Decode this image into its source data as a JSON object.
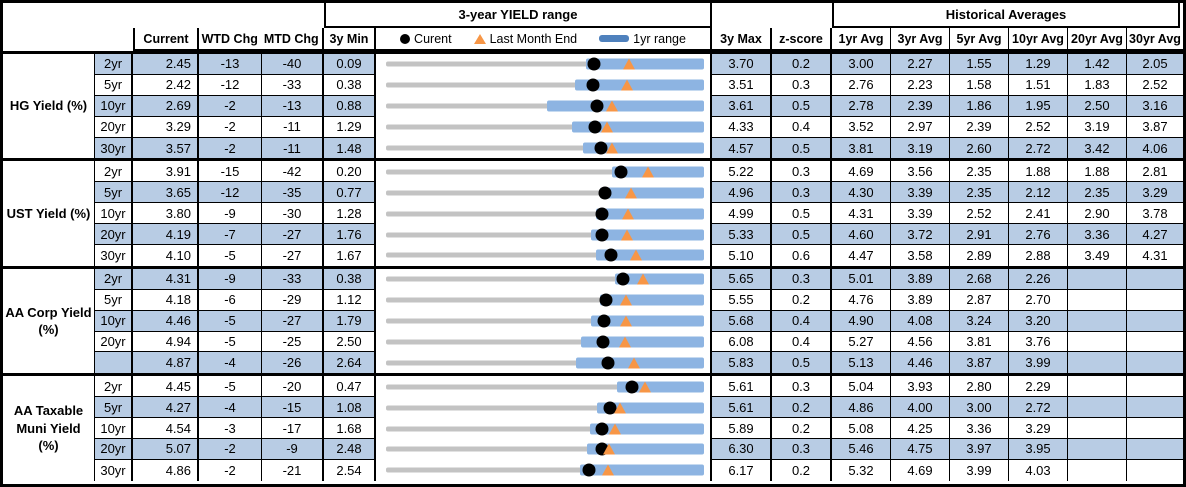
{
  "header": {
    "range_title": "3-year YIELD range",
    "hist_title": "Historical Averages",
    "current": "Current",
    "wtd": "WTD Chg",
    "mtd": "MTD Chg",
    "min3y": "3y Min",
    "max3y": "3y Max",
    "z": "z-score",
    "avgs": [
      "1yr Avg",
      "3yr Avg",
      "5yr Avg",
      "10yr Avg",
      "20yr Avg",
      "30yr Avg"
    ],
    "legend_current": "Curent",
    "legend_lme": "Last Month End",
    "legend_range": "1yr range"
  },
  "colors": {
    "band": "#b8cce4",
    "bar_1yr_range": "#8db4e2",
    "track_3yr_range": "#c3c3c3",
    "last_month_end_marker": "#f79646",
    "current_marker": "#000000",
    "legend_dash": "#4f81bd"
  },
  "chart_data": {
    "type": "table",
    "title": "3-year YIELD range",
    "legend": [
      "Curent",
      "Last Month End",
      "1yr range"
    ],
    "columns": [
      "Current",
      "WTD Chg",
      "MTD Chg",
      "3y Min",
      "3-year YIELD range",
      "3y Max",
      "z-score",
      "1yr Avg",
      "3yr Avg",
      "5yr Avg",
      "10yr Avg",
      "20yr Avg",
      "30yr Avg"
    ],
    "sections": [
      {
        "label_lines": [
          "HG Yield (%)"
        ],
        "rows": [
          {
            "tenor": "2yr",
            "current": "2.45",
            "wtd": "-13",
            "mtd": "-40",
            "min": "0.09",
            "max": "3.70",
            "z": "0.2",
            "avgs": [
              "3.00",
              "2.27",
              "1.55",
              "1.29",
              "1.42",
              "2.05"
            ],
            "chart": {
              "min": 0.09,
              "max": 3.7,
              "current": 2.45,
              "lme": 2.85,
              "bar_lo": 2.36,
              "bar_hi": 3.7
            }
          },
          {
            "tenor": "5yr",
            "current": "2.42",
            "wtd": "-12",
            "mtd": "-33",
            "min": "0.38",
            "max": "3.51",
            "z": "0.3",
            "avgs": [
              "2.76",
              "2.23",
              "1.58",
              "1.51",
              "1.83",
              "2.52"
            ],
            "chart": {
              "min": 0.38,
              "max": 3.51,
              "current": 2.42,
              "lme": 2.75,
              "bar_lo": 2.24,
              "bar_hi": 3.51
            }
          },
          {
            "tenor": "10yr",
            "current": "2.69",
            "wtd": "-2",
            "mtd": "-13",
            "min": "0.88",
            "max": "3.61",
            "z": "0.5",
            "avgs": [
              "2.78",
              "2.39",
              "1.86",
              "1.95",
              "2.50",
              "3.16"
            ],
            "chart": {
              "min": 0.88,
              "max": 3.61,
              "current": 2.69,
              "lme": 2.82,
              "bar_lo": 2.26,
              "bar_hi": 3.61
            }
          },
          {
            "tenor": "20yr",
            "current": "3.29",
            "wtd": "-2",
            "mtd": "-11",
            "min": "1.29",
            "max": "4.33",
            "z": "0.4",
            "avgs": [
              "3.52",
              "2.97",
              "2.39",
              "2.52",
              "3.19",
              "3.87"
            ],
            "chart": {
              "min": 1.29,
              "max": 4.33,
              "current": 3.29,
              "lme": 3.4,
              "bar_lo": 3.07,
              "bar_hi": 4.33
            }
          },
          {
            "tenor": "30yr",
            "current": "3.57",
            "wtd": "-2",
            "mtd": "-11",
            "min": "1.48",
            "max": "4.57",
            "z": "0.5",
            "avgs": [
              "3.81",
              "3.19",
              "2.60",
              "2.72",
              "3.42",
              "4.06"
            ],
            "chart": {
              "min": 1.48,
              "max": 4.57,
              "current": 3.57,
              "lme": 3.68,
              "bar_lo": 3.39,
              "bar_hi": 4.57
            }
          }
        ]
      },
      {
        "label_lines": [
          "UST Yield (%)"
        ],
        "rows": [
          {
            "tenor": "2yr",
            "current": "3.91",
            "wtd": "-15",
            "mtd": "-42",
            "min": "0.20",
            "max": "5.22",
            "z": "0.3",
            "avgs": [
              "4.69",
              "3.56",
              "2.35",
              "1.88",
              "1.88",
              "2.81"
            ],
            "chart": {
              "min": 0.2,
              "max": 5.22,
              "current": 3.91,
              "lme": 4.33,
              "bar_lo": 3.77,
              "bar_hi": 5.22
            }
          },
          {
            "tenor": "5yr",
            "current": "3.65",
            "wtd": "-12",
            "mtd": "-35",
            "min": "0.77",
            "max": "4.96",
            "z": "0.3",
            "avgs": [
              "4.30",
              "3.39",
              "2.35",
              "2.12",
              "2.35",
              "3.29"
            ],
            "chart": {
              "min": 0.77,
              "max": 4.96,
              "current": 3.65,
              "lme": 4.0,
              "bar_lo": 3.59,
              "bar_hi": 4.96
            }
          },
          {
            "tenor": "10yr",
            "current": "3.80",
            "wtd": "-9",
            "mtd": "-30",
            "min": "1.28",
            "max": "4.99",
            "z": "0.5",
            "avgs": [
              "4.31",
              "3.39",
              "2.52",
              "2.41",
              "2.90",
              "3.78"
            ],
            "chart": {
              "min": 1.28,
              "max": 4.99,
              "current": 3.8,
              "lme": 4.1,
              "bar_lo": 3.73,
              "bar_hi": 4.99
            }
          },
          {
            "tenor": "20yr",
            "current": "4.19",
            "wtd": "-7",
            "mtd": "-27",
            "min": "1.76",
            "max": "5.33",
            "z": "0.5",
            "avgs": [
              "4.60",
              "3.72",
              "2.91",
              "2.76",
              "3.36",
              "4.27"
            ],
            "chart": {
              "min": 1.76,
              "max": 5.33,
              "current": 4.19,
              "lme": 4.46,
              "bar_lo": 4.06,
              "bar_hi": 5.33
            }
          },
          {
            "tenor": "30yr",
            "current": "4.10",
            "wtd": "-5",
            "mtd": "-27",
            "min": "1.67",
            "max": "5.10",
            "z": "0.6",
            "avgs": [
              "4.47",
              "3.58",
              "2.89",
              "2.88",
              "3.49",
              "4.31"
            ],
            "chart": {
              "min": 1.67,
              "max": 5.1,
              "current": 4.1,
              "lme": 4.37,
              "bar_lo": 3.93,
              "bar_hi": 5.1
            }
          }
        ]
      },
      {
        "label_lines": [
          "AA Corp Yield",
          "(%)"
        ],
        "rows": [
          {
            "tenor": "2yr",
            "current": "4.31",
            "wtd": "-9",
            "mtd": "-33",
            "min": "0.38",
            "max": "5.65",
            "z": "0.3",
            "avgs": [
              "5.01",
              "3.89",
              "2.68",
              "2.26",
              "",
              ""
            ],
            "chart": {
              "min": 0.38,
              "max": 5.65,
              "current": 4.31,
              "lme": 4.64,
              "bar_lo": 4.18,
              "bar_hi": 5.65
            }
          },
          {
            "tenor": "5yr",
            "current": "4.18",
            "wtd": "-6",
            "mtd": "-29",
            "min": "1.12",
            "max": "5.55",
            "z": "0.2",
            "avgs": [
              "4.76",
              "3.89",
              "2.87",
              "2.70",
              "",
              ""
            ],
            "chart": {
              "min": 1.12,
              "max": 5.55,
              "current": 4.18,
              "lme": 4.47,
              "bar_lo": 4.1,
              "bar_hi": 5.55
            }
          },
          {
            "tenor": "10yr",
            "current": "4.46",
            "wtd": "-5",
            "mtd": "-27",
            "min": "1.79",
            "max": "5.68",
            "z": "0.4",
            "avgs": [
              "4.90",
              "4.08",
              "3.24",
              "3.20",
              "",
              ""
            ],
            "chart": {
              "min": 1.79,
              "max": 5.68,
              "current": 4.46,
              "lme": 4.73,
              "bar_lo": 4.3,
              "bar_hi": 5.68
            }
          },
          {
            "tenor": "20yr",
            "current": "4.94",
            "wtd": "-5",
            "mtd": "-25",
            "min": "2.50",
            "max": "6.08",
            "z": "0.4",
            "avgs": [
              "5.27",
              "4.56",
              "3.81",
              "3.76",
              "",
              ""
            ],
            "chart": {
              "min": 2.5,
              "max": 6.08,
              "current": 4.94,
              "lme": 5.19,
              "bar_lo": 4.69,
              "bar_hi": 6.08
            }
          },
          {
            "tenor": "",
            "current": "4.87",
            "wtd": "-4",
            "mtd": "-26",
            "min": "2.64",
            "max": "5.83",
            "z": "0.5",
            "avgs": [
              "5.13",
              "4.46",
              "3.87",
              "3.99",
              "",
              ""
            ],
            "chart": {
              "min": 2.64,
              "max": 5.83,
              "current": 4.87,
              "lme": 5.13,
              "bar_lo": 4.55,
              "bar_hi": 5.83
            }
          }
        ]
      },
      {
        "label_lines": [
          "AA Taxable",
          "Muni Yield",
          "(%)"
        ],
        "rows": [
          {
            "tenor": "2yr",
            "current": "4.45",
            "wtd": "-5",
            "mtd": "-20",
            "min": "0.47",
            "max": "5.61",
            "z": "0.3",
            "avgs": [
              "5.04",
              "3.93",
              "2.80",
              "2.29",
              "",
              ""
            ],
            "chart": {
              "min": 0.47,
              "max": 5.61,
              "current": 4.45,
              "lme": 4.65,
              "bar_lo": 4.21,
              "bar_hi": 5.61
            }
          },
          {
            "tenor": "5yr",
            "current": "4.27",
            "wtd": "-4",
            "mtd": "-15",
            "min": "1.08",
            "max": "5.61",
            "z": "0.2",
            "avgs": [
              "4.86",
              "4.00",
              "3.00",
              "2.72",
              "",
              ""
            ],
            "chart": {
              "min": 1.08,
              "max": 5.61,
              "current": 4.27,
              "lme": 4.42,
              "bar_lo": 4.08,
              "bar_hi": 5.61
            }
          },
          {
            "tenor": "10yr",
            "current": "4.54",
            "wtd": "-3",
            "mtd": "-17",
            "min": "1.68",
            "max": "5.89",
            "z": "0.2",
            "avgs": [
              "5.08",
              "4.25",
              "3.36",
              "3.29",
              "",
              ""
            ],
            "chart": {
              "min": 1.68,
              "max": 5.89,
              "current": 4.54,
              "lme": 4.71,
              "bar_lo": 4.38,
              "bar_hi": 5.89
            }
          },
          {
            "tenor": "20yr",
            "current": "5.07",
            "wtd": "-2",
            "mtd": "-9",
            "min": "2.48",
            "max": "6.30",
            "z": "0.3",
            "avgs": [
              "5.46",
              "4.75",
              "3.97",
              "3.95",
              "",
              ""
            ],
            "chart": {
              "min": 2.48,
              "max": 6.3,
              "current": 5.07,
              "lme": 5.16,
              "bar_lo": 4.9,
              "bar_hi": 6.3
            }
          },
          {
            "tenor": "30yr",
            "current": "4.86",
            "wtd": "-2",
            "mtd": "-21",
            "min": "2.54",
            "max": "6.17",
            "z": "0.2",
            "avgs": [
              "5.32",
              "4.69",
              "3.99",
              "4.03",
              "",
              ""
            ],
            "chart": {
              "min": 2.54,
              "max": 6.17,
              "current": 4.86,
              "lme": 5.07,
              "bar_lo": 4.75,
              "bar_hi": 6.17
            }
          }
        ]
      }
    ]
  }
}
